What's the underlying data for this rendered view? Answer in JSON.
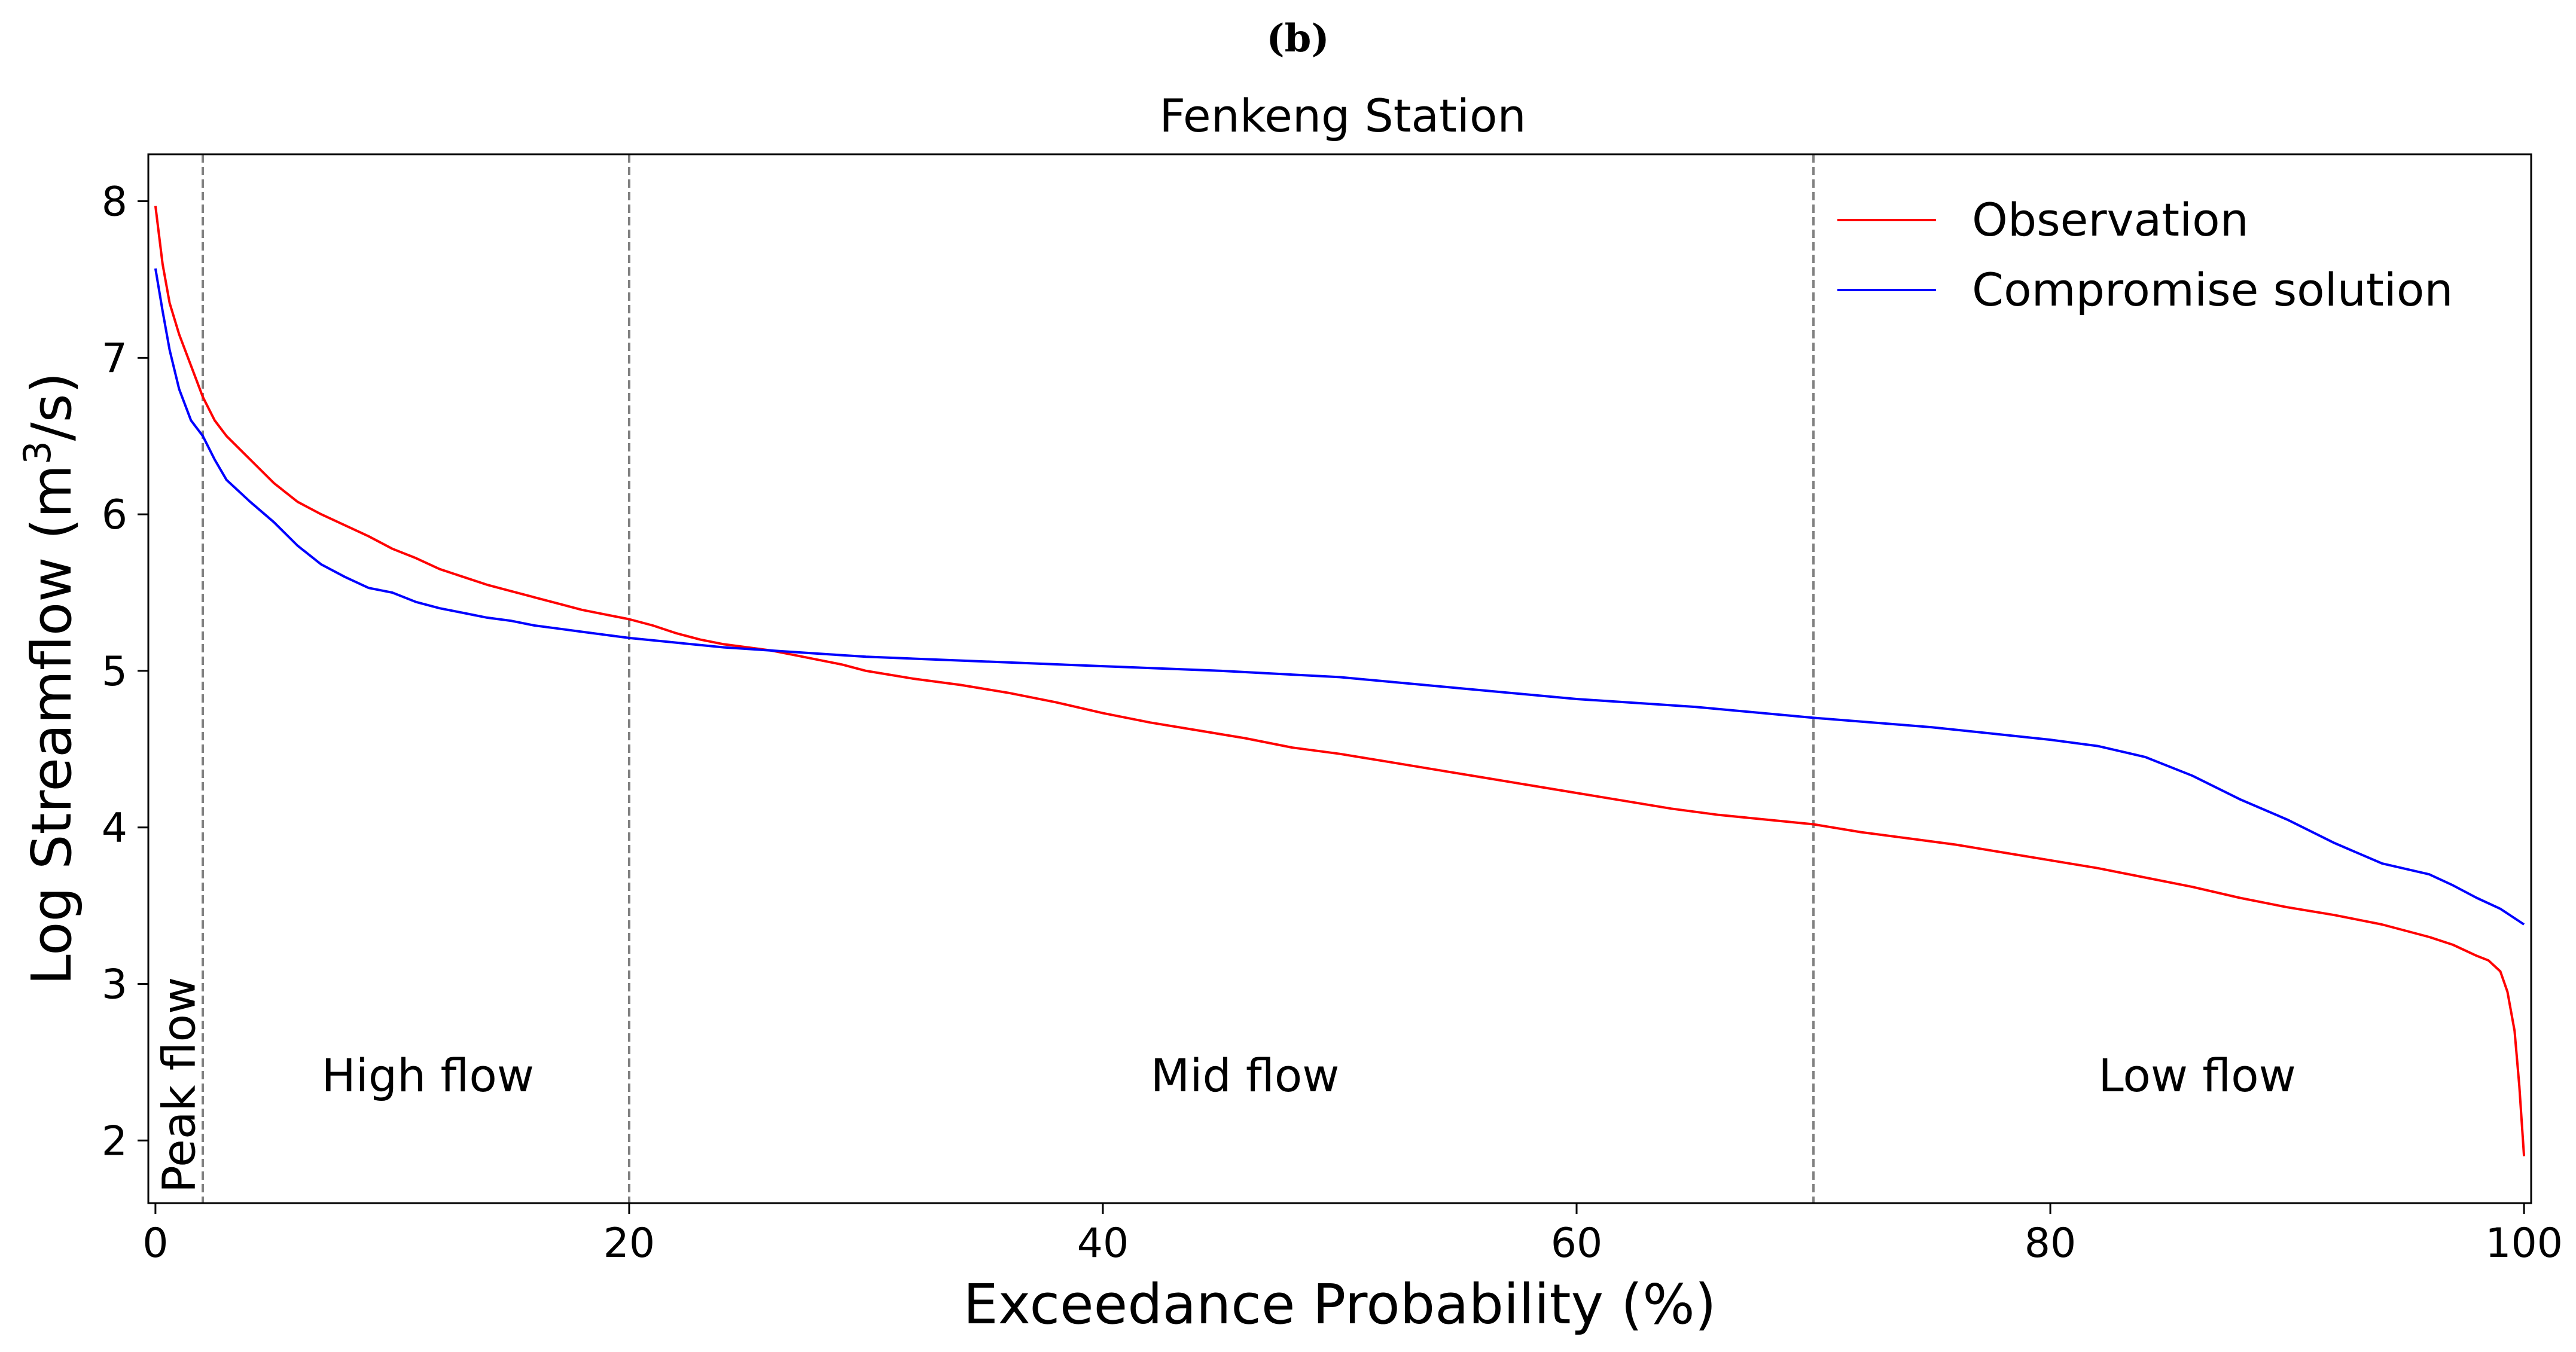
{
  "chart_data": {
    "type": "line",
    "panel_label": "(b)",
    "title": "Fenkeng Station",
    "xlabel": "Exceedance Probability (%)",
    "ylabel": "Log Streamflow (m3/s)",
    "ylabel_parts": {
      "before": "Log Streamflow (m",
      "sup": "3",
      "after": "/s)"
    },
    "xlim": [
      -0.3,
      100.3
    ],
    "ylim": [
      1.6,
      8.3
    ],
    "xticks": [
      0,
      20,
      40,
      60,
      80,
      100
    ],
    "yticks": [
      2,
      3,
      4,
      5,
      6,
      7,
      8
    ],
    "grid": false,
    "legend_position": "top-right",
    "thresholds": [
      2,
      20,
      70
    ],
    "regions": [
      {
        "label": "Peak flow",
        "x": 1,
        "orientation": "vertical"
      },
      {
        "label": "High flow",
        "x": 11.5,
        "orientation": "horizontal"
      },
      {
        "label": "Mid flow",
        "x": 46,
        "orientation": "horizontal"
      },
      {
        "label": "Low flow",
        "x": 86.2,
        "orientation": "horizontal"
      }
    ],
    "series": [
      {
        "name": "Observation",
        "color": "#ff0000",
        "x": [
          0,
          0.3,
          0.6,
          1,
          1.5,
          2,
          2.5,
          3,
          4,
          5,
          6,
          7,
          8,
          9,
          10,
          11,
          12,
          13,
          14,
          15,
          16,
          17,
          18,
          19,
          20,
          21,
          22,
          23,
          24,
          25,
          26,
          27,
          28,
          29,
          30,
          32,
          34,
          36,
          38,
          40,
          42,
          44,
          46,
          48,
          50,
          52,
          54,
          56,
          58,
          60,
          62,
          64,
          66,
          68,
          70,
          72,
          74,
          76,
          78,
          80,
          82,
          84,
          86,
          88,
          90,
          92,
          94,
          96,
          97,
          98,
          98.5,
          99,
          99.3,
          99.6,
          99.8,
          100
        ],
        "y": [
          7.97,
          7.6,
          7.35,
          7.15,
          6.95,
          6.75,
          6.6,
          6.5,
          6.35,
          6.2,
          6.08,
          6.0,
          5.93,
          5.86,
          5.78,
          5.72,
          5.65,
          5.6,
          5.55,
          5.51,
          5.47,
          5.43,
          5.39,
          5.36,
          5.33,
          5.29,
          5.24,
          5.2,
          5.17,
          5.15,
          5.13,
          5.1,
          5.07,
          5.04,
          5.0,
          4.95,
          4.91,
          4.86,
          4.8,
          4.73,
          4.67,
          4.62,
          4.57,
          4.51,
          4.47,
          4.42,
          4.37,
          4.32,
          4.27,
          4.22,
          4.17,
          4.12,
          4.08,
          4.05,
          4.02,
          3.97,
          3.93,
          3.89,
          3.84,
          3.79,
          3.74,
          3.68,
          3.62,
          3.55,
          3.49,
          3.44,
          3.38,
          3.3,
          3.25,
          3.18,
          3.15,
          3.08,
          2.95,
          2.7,
          2.35,
          1.9
        ]
      },
      {
        "name": "Compromise solution",
        "color": "#0000ff",
        "x": [
          0,
          0.3,
          0.6,
          1,
          1.5,
          2,
          2.5,
          3,
          4,
          5,
          6,
          7,
          8,
          9,
          10,
          11,
          12,
          13,
          14,
          15,
          16,
          17,
          18,
          19,
          20,
          22,
          24,
          26,
          28,
          30,
          35,
          40,
          45,
          50,
          55,
          60,
          65,
          70,
          75,
          80,
          82,
          84,
          86,
          88,
          90,
          92,
          94,
          96,
          97,
          98,
          99,
          100
        ],
        "y": [
          7.57,
          7.3,
          7.05,
          6.8,
          6.6,
          6.5,
          6.35,
          6.22,
          6.08,
          5.95,
          5.8,
          5.68,
          5.6,
          5.53,
          5.5,
          5.44,
          5.4,
          5.37,
          5.34,
          5.32,
          5.29,
          5.27,
          5.25,
          5.23,
          5.21,
          5.18,
          5.15,
          5.13,
          5.11,
          5.09,
          5.06,
          5.03,
          5.0,
          4.96,
          4.89,
          4.82,
          4.77,
          4.7,
          4.64,
          4.56,
          4.52,
          4.45,
          4.33,
          4.18,
          4.05,
          3.9,
          3.77,
          3.7,
          3.63,
          3.55,
          3.48,
          3.38
        ]
      }
    ]
  }
}
